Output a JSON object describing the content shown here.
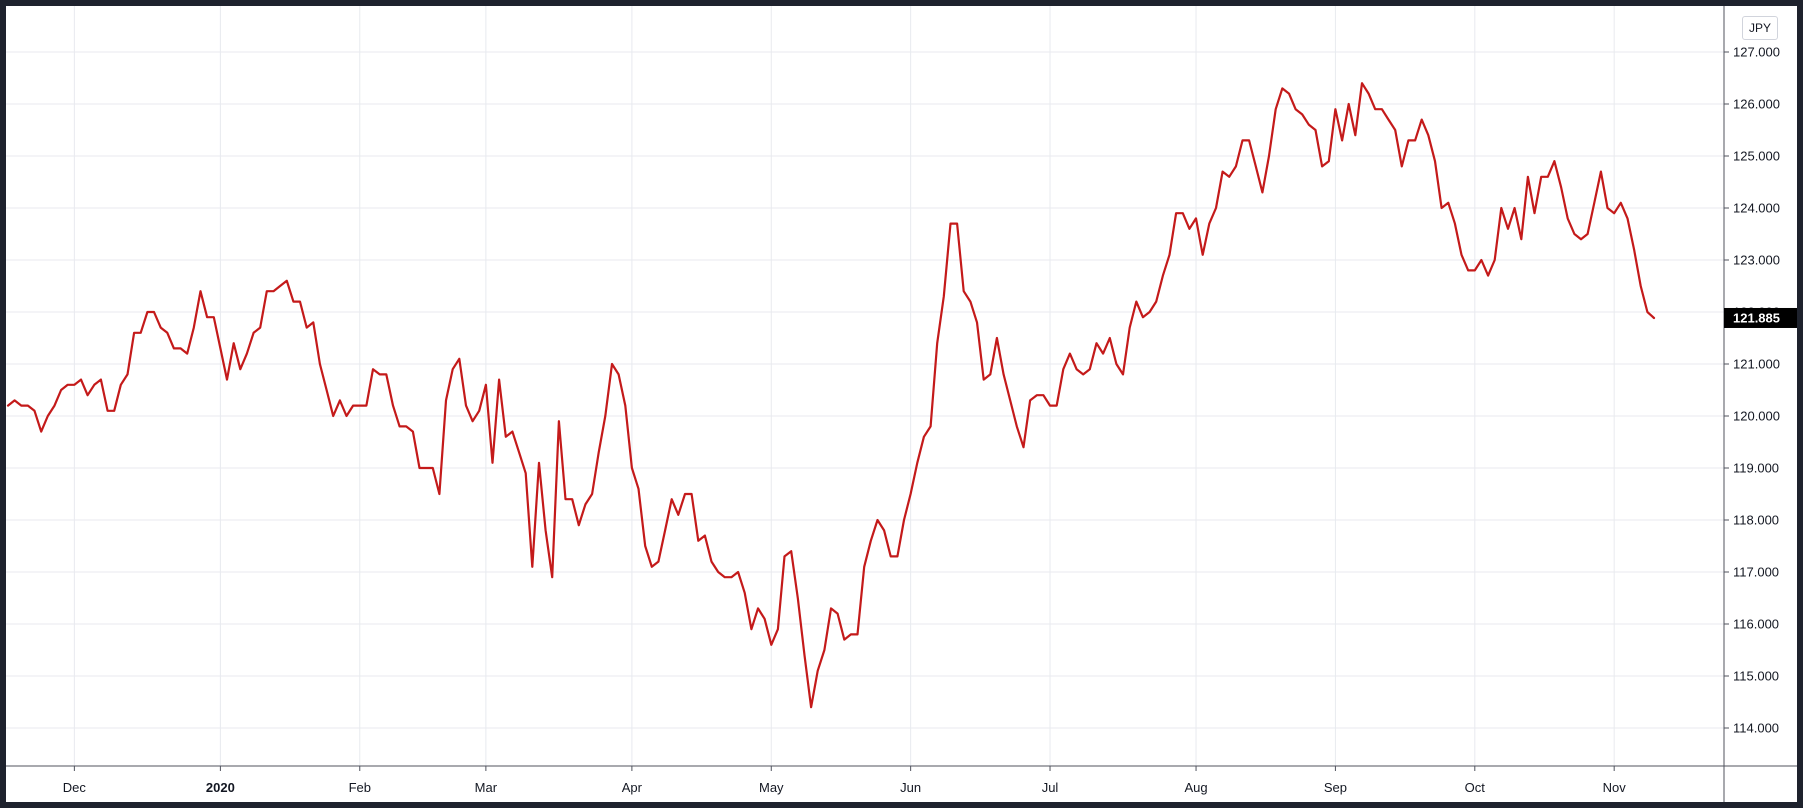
{
  "currency": "JPY",
  "colors": {
    "line": "#c41a1a",
    "grid": "#e8eaef",
    "axis": "#50535e",
    "frame": "#1e222d",
    "tag_bg": "#000000",
    "text": "#131722"
  },
  "chart_data": {
    "type": "line",
    "series": [
      {
        "values": [
          120.2,
          120.3,
          120.2,
          120.2,
          120.1,
          119.7,
          120.0,
          120.2,
          120.5,
          120.6,
          120.6,
          120.7,
          120.4,
          120.6,
          120.7,
          120.1,
          120.1,
          120.6,
          120.8,
          121.6,
          121.6,
          122.0,
          122.0,
          121.7,
          121.6,
          121.3,
          121.3,
          121.2,
          121.7,
          122.4,
          121.9,
          121.9,
          121.3,
          120.7,
          121.4,
          120.9,
          121.2,
          121.6,
          121.7,
          122.4,
          122.4,
          122.5,
          122.6,
          122.2,
          122.2,
          121.7,
          121.8,
          121.0,
          120.5,
          120.0,
          120.3,
          120.0,
          120.2,
          120.2,
          120.2,
          120.9,
          120.8,
          120.8,
          120.2,
          119.8,
          119.8,
          119.7,
          119.0,
          119.0,
          119.0,
          118.5,
          120.3,
          120.9,
          121.1,
          120.2,
          119.9,
          120.1,
          120.6,
          119.1,
          120.7,
          119.6,
          119.7,
          119.3,
          118.9,
          117.1,
          119.1,
          117.8,
          116.9,
          119.9,
          118.4,
          118.4,
          117.9,
          118.3,
          118.5,
          119.3,
          120.0,
          121.0,
          120.8,
          120.2,
          119.0,
          118.6,
          117.5,
          117.1,
          117.2,
          117.8,
          118.4,
          118.1,
          118.5,
          118.5,
          117.6,
          117.7,
          117.2,
          117.0,
          116.9,
          116.9,
          117.0,
          116.6,
          115.9,
          116.3,
          116.1,
          115.6,
          115.9,
          117.3,
          117.4,
          116.5,
          115.4,
          114.4,
          115.1,
          115.5,
          116.3,
          116.2,
          115.7,
          115.8,
          115.8,
          117.1,
          117.6,
          118.0,
          117.8,
          117.3,
          117.3,
          118.0,
          118.5,
          119.1,
          119.6,
          119.8,
          121.4,
          122.3,
          123.7,
          123.7,
          122.4,
          122.2,
          121.8,
          120.7,
          120.8,
          121.5,
          120.8,
          120.3,
          119.8,
          119.4,
          120.3,
          120.4,
          120.4,
          120.2,
          120.2,
          120.9,
          121.2,
          120.9,
          120.8,
          120.9,
          121.4,
          121.2,
          121.5,
          121.0,
          120.8,
          121.7,
          122.2,
          121.9,
          122.0,
          122.2,
          122.7,
          123.1,
          123.9,
          123.9,
          123.6,
          123.8,
          123.1,
          123.7,
          124.0,
          124.7,
          124.6,
          124.8,
          125.3,
          125.3,
          124.8,
          124.3,
          125.0,
          125.9,
          126.3,
          126.2,
          125.9,
          125.8,
          125.6,
          125.5,
          124.8,
          124.9,
          125.9,
          125.3,
          126.0,
          125.4,
          126.4,
          126.2,
          125.9,
          125.9,
          125.7,
          125.5,
          124.8,
          125.3,
          125.3,
          125.7,
          125.4,
          124.9,
          124.0,
          124.1,
          123.7,
          123.1,
          122.8,
          122.8,
          123.0,
          122.7,
          123.0,
          124.0,
          123.6,
          124.0,
          123.4,
          124.6,
          123.9,
          124.6,
          124.6,
          124.9,
          124.4,
          123.8,
          123.5,
          123.4,
          123.5,
          124.1,
          124.7,
          124.0,
          123.9,
          124.1,
          123.8,
          123.2,
          122.5,
          122.0,
          121.885
        ]
      }
    ],
    "x_ticks": [
      {
        "label": "Dec",
        "bold": false
      },
      {
        "label": "2020",
        "bold": true
      },
      {
        "label": "Feb",
        "bold": false
      },
      {
        "label": "Mar",
        "bold": false
      },
      {
        "label": "Apr",
        "bold": false
      },
      {
        "label": "May",
        "bold": false
      },
      {
        "label": "Jun",
        "bold": false
      },
      {
        "label": "Jul",
        "bold": false
      },
      {
        "label": "Aug",
        "bold": false
      },
      {
        "label": "Sep",
        "bold": false
      },
      {
        "label": "Oct",
        "bold": false
      },
      {
        "label": "Nov",
        "bold": false
      }
    ],
    "x_tick_index": [
      10,
      32,
      53,
      72,
      94,
      115,
      136,
      157,
      179,
      200,
      221,
      242
    ],
    "y_ticks": [
      "127.000",
      "126.000",
      "125.000",
      "124.000",
      "123.000",
      "122.000",
      "121.000",
      "120.000",
      "119.000",
      "118.000",
      "117.000",
      "116.000",
      "115.000",
      "114.000"
    ],
    "y_axis_side": "right",
    "grid": true,
    "last_value": "121.885"
  }
}
